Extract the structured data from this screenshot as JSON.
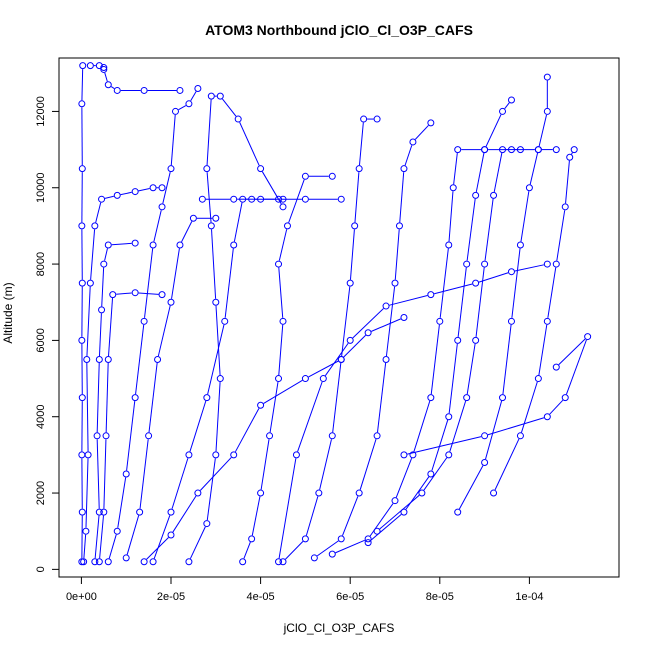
{
  "chart_data": {
    "type": "line",
    "title": "ATOM3 Northbound jClO_Cl_O3P_CAFS",
    "xlabel": "jClO_Cl_O3P_CAFS",
    "ylabel": "Altitude (m)",
    "xlim": [
      -5e-06,
      0.00012
    ],
    "ylim": [
      -200,
      13400
    ],
    "x_ticks": [
      {
        "value": 0,
        "label": "0e+00"
      },
      {
        "value": 2e-05,
        "label": "2e-05"
      },
      {
        "value": 4e-05,
        "label": "4e-05"
      },
      {
        "value": 6e-05,
        "label": "6e-05"
      },
      {
        "value": 8e-05,
        "label": "8e-05"
      },
      {
        "value": 0.0001,
        "label": "1e-04"
      }
    ],
    "y_ticks": [
      {
        "value": 0,
        "label": "0"
      },
      {
        "value": 2000,
        "label": "2000"
      },
      {
        "value": 4000,
        "label": "4000"
      },
      {
        "value": 6000,
        "label": "6000"
      },
      {
        "value": 8000,
        "label": "8000"
      },
      {
        "value": 10000,
        "label": "10000"
      },
      {
        "value": 12000,
        "label": "12000"
      }
    ],
    "grid": false,
    "marker": "open-circle",
    "color": "#0000ff",
    "series": [
      {
        "points": [
          [
            1e-07,
            200
          ],
          [
            2e-07,
            1500
          ],
          [
            1e-07,
            3000
          ],
          [
            2e-07,
            4500
          ],
          [
            1e-07,
            6000
          ],
          [
            2e-07,
            7500
          ],
          [
            1e-07,
            9000
          ],
          [
            2e-07,
            10500
          ],
          [
            1e-07,
            12200
          ],
          [
            3e-07,
            13200
          ],
          [
            2e-06,
            13200
          ],
          [
            4e-06,
            13200
          ],
          [
            5e-06,
            13150
          ]
        ]
      },
      {
        "points": [
          [
            5e-07,
            200
          ],
          [
            1e-06,
            1000
          ],
          [
            1.5e-06,
            3000
          ],
          [
            1.2e-06,
            5500
          ],
          [
            2e-06,
            7500
          ],
          [
            3e-06,
            9000
          ],
          [
            4.5e-06,
            9700
          ],
          [
            8e-06,
            9800
          ],
          [
            1.2e-05,
            9900
          ],
          [
            1.6e-05,
            10000
          ],
          [
            1.8e-05,
            10000
          ]
        ]
      },
      {
        "points": [
          [
            5e-06,
            13100
          ],
          [
            6e-06,
            12700
          ],
          [
            8e-06,
            12550
          ],
          [
            1.4e-05,
            12550
          ],
          [
            2.2e-05,
            12550
          ]
        ]
      },
      {
        "points": [
          [
            3e-06,
            200
          ],
          [
            4e-06,
            1500
          ],
          [
            3.5e-06,
            3500
          ],
          [
            4e-06,
            5500
          ],
          [
            4.5e-06,
            6800
          ],
          [
            5e-06,
            8000
          ],
          [
            6e-06,
            8500
          ],
          [
            1.2e-05,
            8550
          ]
        ]
      },
      {
        "points": [
          [
            4e-06,
            200
          ],
          [
            5e-06,
            1500
          ],
          [
            5.5e-06,
            3500
          ],
          [
            6e-06,
            5500
          ],
          [
            7e-06,
            7200
          ],
          [
            1.2e-05,
            7250
          ],
          [
            1.8e-05,
            7200
          ]
        ]
      },
      {
        "points": [
          [
            6e-06,
            200
          ],
          [
            8e-06,
            1000
          ],
          [
            1e-05,
            2500
          ],
          [
            1.2e-05,
            4500
          ],
          [
            1.4e-05,
            6500
          ],
          [
            1.6e-05,
            8500
          ],
          [
            1.8e-05,
            9500
          ],
          [
            2e-05,
            10500
          ],
          [
            2.1e-05,
            12000
          ],
          [
            2.4e-05,
            12200
          ],
          [
            2.6e-05,
            12600
          ]
        ]
      },
      {
        "points": [
          [
            1e-05,
            300
          ],
          [
            1.3e-05,
            1500
          ],
          [
            1.5e-05,
            3500
          ],
          [
            1.7e-05,
            5500
          ],
          [
            2e-05,
            7000
          ],
          [
            2.2e-05,
            8500
          ],
          [
            2.5e-05,
            9200
          ],
          [
            3e-05,
            9200
          ]
        ]
      },
      {
        "points": [
          [
            1.6e-05,
            200
          ],
          [
            2e-05,
            1500
          ],
          [
            2.4e-05,
            3000
          ],
          [
            2.8e-05,
            4500
          ],
          [
            3.2e-05,
            6500
          ],
          [
            3.4e-05,
            8500
          ],
          [
            3.6e-05,
            9700
          ],
          [
            4e-05,
            9700
          ],
          [
            4.4e-05,
            9700
          ],
          [
            5e-05,
            9700
          ],
          [
            5.8e-05,
            9700
          ]
        ]
      },
      {
        "points": [
          [
            2.4e-05,
            200
          ],
          [
            2.8e-05,
            1200
          ],
          [
            3e-05,
            3000
          ],
          [
            3.1e-05,
            5000
          ],
          [
            3e-05,
            7000
          ],
          [
            2.9e-05,
            9000
          ],
          [
            2.8e-05,
            10500
          ],
          [
            2.9e-05,
            12400
          ],
          [
            3.1e-05,
            12400
          ],
          [
            3.5e-05,
            11800
          ],
          [
            4e-05,
            10500
          ],
          [
            4.5e-05,
            9500
          ]
        ]
      },
      {
        "points": [
          [
            3.6e-05,
            200
          ],
          [
            3.8e-05,
            800
          ],
          [
            4e-05,
            2000
          ],
          [
            4.2e-05,
            3500
          ],
          [
            4.4e-05,
            5000
          ],
          [
            4.5e-05,
            6500
          ],
          [
            4.4e-05,
            8000
          ],
          [
            4.6e-05,
            9000
          ],
          [
            5e-05,
            10300
          ],
          [
            5.6e-05,
            10300
          ]
        ]
      },
      {
        "points": [
          [
            4.5e-05,
            200
          ],
          [
            5e-05,
            800
          ],
          [
            5.3e-05,
            2000
          ],
          [
            5.6e-05,
            3500
          ],
          [
            5.8e-05,
            5500
          ],
          [
            6e-05,
            7500
          ],
          [
            6.1e-05,
            9000
          ],
          [
            6.2e-05,
            10500
          ],
          [
            6.3e-05,
            11800
          ],
          [
            6.6e-05,
            11800
          ]
        ]
      },
      {
        "points": [
          [
            5.2e-05,
            300
          ],
          [
            5.8e-05,
            800
          ],
          [
            6.2e-05,
            2000
          ],
          [
            6.6e-05,
            3500
          ],
          [
            6.8e-05,
            5500
          ],
          [
            7e-05,
            7500
          ],
          [
            7.1e-05,
            9000
          ],
          [
            7.2e-05,
            10500
          ],
          [
            7.4e-05,
            11200
          ],
          [
            7.8e-05,
            11700
          ]
        ]
      },
      {
        "points": [
          [
            5.6e-05,
            400
          ],
          [
            6.4e-05,
            800
          ],
          [
            7e-05,
            1800
          ],
          [
            7.4e-05,
            3000
          ],
          [
            7.8e-05,
            4500
          ],
          [
            8e-05,
            6500
          ],
          [
            8.2e-05,
            8500
          ],
          [
            8.3e-05,
            10000
          ],
          [
            8.4e-05,
            11000
          ],
          [
            9e-05,
            11000
          ],
          [
            9.6e-05,
            11000
          ],
          [
            0.000102,
            11000
          ],
          [
            0.000106,
            11000
          ]
        ]
      },
      {
        "points": [
          [
            6.4e-05,
            700
          ],
          [
            7.2e-05,
            1500
          ],
          [
            7.8e-05,
            2500
          ],
          [
            8.2e-05,
            4000
          ],
          [
            8.4e-05,
            6000
          ],
          [
            8.6e-05,
            8000
          ],
          [
            8.8e-05,
            9800
          ],
          [
            9e-05,
            11000
          ],
          [
            9.4e-05,
            12000
          ],
          [
            9.6e-05,
            12300
          ]
        ]
      },
      {
        "points": [
          [
            6.6e-05,
            1000
          ],
          [
            7.6e-05,
            2000
          ],
          [
            8.2e-05,
            3000
          ],
          [
            8.6e-05,
            4500
          ],
          [
            8.8e-05,
            6000
          ],
          [
            9e-05,
            8000
          ],
          [
            9.2e-05,
            9800
          ],
          [
            9.4e-05,
            11000
          ],
          [
            9.8e-05,
            11000
          ]
        ]
      },
      {
        "points": [
          [
            8.4e-05,
            1500
          ],
          [
            9e-05,
            2800
          ],
          [
            9.4e-05,
            4500
          ],
          [
            9.6e-05,
            6500
          ],
          [
            9.8e-05,
            8500
          ],
          [
            0.0001,
            10000
          ],
          [
            0.000102,
            11000
          ],
          [
            0.000104,
            12000
          ],
          [
            0.000104,
            12900
          ]
        ]
      },
      {
        "points": [
          [
            9.2e-05,
            2000
          ],
          [
            9.8e-05,
            3500
          ],
          [
            0.000102,
            5000
          ],
          [
            0.000104,
            6500
          ],
          [
            0.000106,
            8000
          ],
          [
            0.000108,
            9500
          ],
          [
            0.000109,
            10800
          ],
          [
            0.00011,
            11000
          ]
        ]
      },
      {
        "points": [
          [
            7.2e-05,
            3000
          ],
          [
            9e-05,
            3500
          ],
          [
            0.000104,
            4000
          ],
          [
            0.000108,
            4500
          ],
          [
            0.000113,
            6100
          ],
          [
            0.000106,
            5300
          ]
        ]
      },
      {
        "points": [
          [
            4.4e-05,
            200
          ],
          [
            4.8e-05,
            3000
          ],
          [
            5.4e-05,
            5000
          ],
          [
            6e-05,
            6000
          ],
          [
            6.8e-05,
            6900
          ],
          [
            7.8e-05,
            7200
          ],
          [
            8.8e-05,
            7500
          ],
          [
            9.6e-05,
            7800
          ],
          [
            0.000104,
            8000
          ]
        ]
      },
      {
        "points": [
          [
            2.7e-05,
            9700
          ],
          [
            3.4e-05,
            9700
          ],
          [
            3.8e-05,
            9700
          ],
          [
            4.5e-05,
            9700
          ]
        ]
      },
      {
        "points": [
          [
            1.4e-05,
            200
          ],
          [
            2e-05,
            900
          ],
          [
            2.6e-05,
            2000
          ],
          [
            3.4e-05,
            3000
          ],
          [
            4e-05,
            4300
          ],
          [
            5e-05,
            5000
          ],
          [
            5.8e-05,
            5500
          ],
          [
            6.4e-05,
            6200
          ],
          [
            7.2e-05,
            6600
          ]
        ]
      }
    ]
  }
}
